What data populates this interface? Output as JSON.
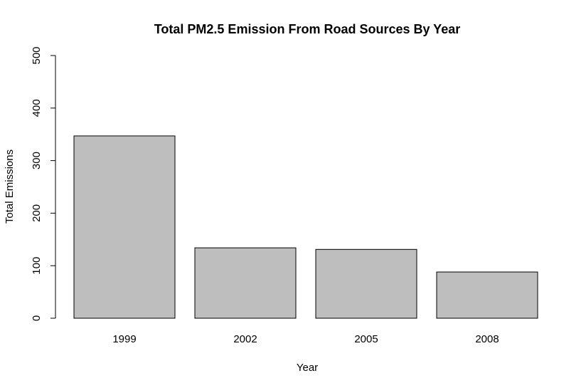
{
  "chart_data": {
    "type": "bar",
    "title": "Total PM2.5 Emission From Road Sources By Year",
    "xlabel": "Year",
    "ylabel": "Total Emissions",
    "categories": [
      "1999",
      "2002",
      "2005",
      "2008"
    ],
    "values": [
      347,
      134,
      131,
      88
    ],
    "ylim": [
      0,
      500
    ],
    "yticks": [
      0,
      100,
      200,
      300,
      400,
      500
    ],
    "bar_color": "#bebebe",
    "grid": false,
    "legend": "none"
  }
}
